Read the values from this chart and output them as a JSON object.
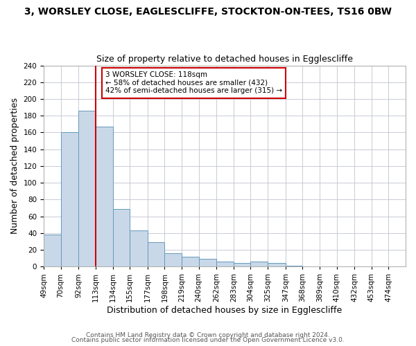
{
  "title": "3, WORSLEY CLOSE, EAGLESCLIFFE, STOCKTON-ON-TEES, TS16 0BW",
  "subtitle": "Size of property relative to detached houses in Egglescliffe",
  "xlabel": "Distribution of detached houses by size in Egglescliffe",
  "ylabel": "Number of detached properties",
  "bin_labels": [
    "49sqm",
    "70sqm",
    "92sqm",
    "113sqm",
    "134sqm",
    "155sqm",
    "177sqm",
    "198sqm",
    "219sqm",
    "240sqm",
    "262sqm",
    "283sqm",
    "304sqm",
    "325sqm",
    "347sqm",
    "368sqm",
    "389sqm",
    "410sqm",
    "432sqm",
    "453sqm",
    "474sqm"
  ],
  "bin_edges": [
    49,
    70,
    92,
    113,
    134,
    155,
    177,
    198,
    219,
    240,
    262,
    283,
    304,
    325,
    347,
    368,
    389,
    410,
    432,
    453,
    474
  ],
  "bar_heights": [
    38,
    160,
    186,
    167,
    69,
    43,
    29,
    16,
    12,
    9,
    6,
    4,
    6,
    4,
    1,
    0,
    0,
    0,
    0,
    0
  ],
  "bar_color": "#c8d8e8",
  "bar_edge_color": "#6699bb",
  "vline_x": 113,
  "vline_color": "#cc0000",
  "ylim": [
    0,
    240
  ],
  "yticks": [
    0,
    20,
    40,
    60,
    80,
    100,
    120,
    140,
    160,
    180,
    200,
    220,
    240
  ],
  "annotation_line1": "3 WORSLEY CLOSE: 118sqm",
  "annotation_line2": "← 58% of detached houses are smaller (432)",
  "annotation_line3": "42% of semi-detached houses are larger (315) →",
  "footer1": "Contains HM Land Registry data © Crown copyright and database right 2024.",
  "footer2": "Contains public sector information licensed under the Open Government Licence v3.0.",
  "bg_color": "#ffffff",
  "grid_color": "#c0c4d0",
  "title_fontsize": 10,
  "subtitle_fontsize": 9,
  "ylabel_fontsize": 9,
  "xlabel_fontsize": 9,
  "tick_fontsize": 7.5,
  "annotation_fontsize": 7.5,
  "footer_fontsize": 6.5
}
